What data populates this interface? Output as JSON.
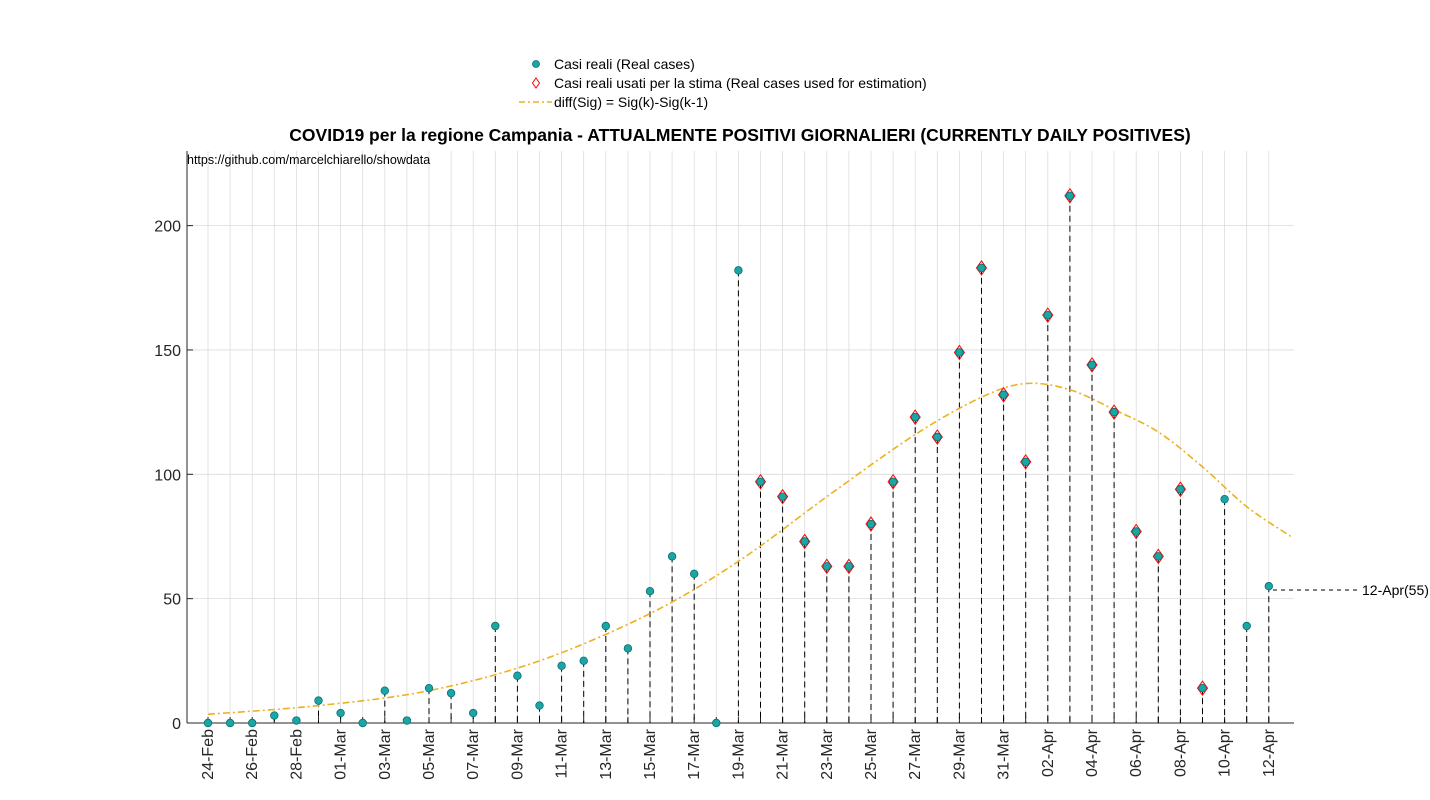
{
  "chart_data": {
    "type": "scatter",
    "title": "COVID19 per la regione Campania - ATTUALMENTE POSITIVI GIORNALIERI (CURRENTLY DAILY POSITIVES)",
    "xlabel": "",
    "ylabel": "",
    "ylim": [
      0,
      230
    ],
    "yticks": [
      0,
      50,
      100,
      150,
      200
    ],
    "grid": true,
    "legend_position": "top-center",
    "dates": [
      "24-Feb",
      "25-Feb",
      "26-Feb",
      "27-Feb",
      "28-Feb",
      "29-Feb",
      "01-Mar",
      "02-Mar",
      "03-Mar",
      "04-Mar",
      "05-Mar",
      "06-Mar",
      "07-Mar",
      "08-Mar",
      "09-Mar",
      "10-Mar",
      "11-Mar",
      "12-Mar",
      "13-Mar",
      "14-Mar",
      "15-Mar",
      "16-Mar",
      "17-Mar",
      "18-Mar",
      "19-Mar",
      "20-Mar",
      "21-Mar",
      "22-Mar",
      "23-Mar",
      "24-Mar",
      "25-Mar",
      "26-Mar",
      "27-Mar",
      "28-Mar",
      "29-Mar",
      "30-Mar",
      "31-Mar",
      "01-Apr",
      "02-Apr",
      "03-Apr",
      "04-Apr",
      "05-Apr",
      "06-Apr",
      "07-Apr",
      "08-Apr",
      "09-Apr",
      "10-Apr",
      "11-Apr",
      "12-Apr"
    ],
    "xtick_labels": [
      "24-Feb",
      "26-Feb",
      "28-Feb",
      "01-Mar",
      "03-Mar",
      "05-Mar",
      "07-Mar",
      "09-Mar",
      "11-Mar",
      "13-Mar",
      "15-Mar",
      "17-Mar",
      "19-Mar",
      "21-Mar",
      "23-Mar",
      "25-Mar",
      "27-Mar",
      "29-Mar",
      "31-Mar",
      "02-Apr",
      "04-Apr",
      "06-Apr",
      "08-Apr",
      "10-Apr",
      "12-Apr"
    ],
    "series": [
      {
        "name": "Casi reali (Real cases)",
        "color": "#1aa6a6",
        "marker": "circle",
        "values": [
          0,
          0,
          0,
          3,
          1,
          9,
          4,
          0,
          13,
          1,
          14,
          12,
          4,
          39,
          19,
          7,
          23,
          25,
          39,
          30,
          53,
          67,
          60,
          0,
          182,
          97,
          91,
          73,
          63,
          63,
          80,
          97,
          123,
          115,
          149,
          183,
          132,
          105,
          164,
          212,
          144,
          125,
          77,
          67,
          94,
          14,
          90,
          39,
          55
        ]
      },
      {
        "name": "Casi reali usati per la stima (Real cases used for estimation)",
        "color": "#ff0000",
        "marker": "diamond",
        "start_date": "20-Mar",
        "end_date": "09-Apr",
        "values": [
          97,
          91,
          73,
          63,
          63,
          80,
          97,
          123,
          115,
          149,
          183,
          132,
          105,
          164,
          212,
          144,
          125,
          77,
          67,
          94,
          14
        ]
      },
      {
        "name": "diff(Sig) = Sig(k)-Sig(k-1)",
        "color": "#edb120",
        "line_style": "dash-dot",
        "x_dates": [
          "24-Feb",
          "29-Feb",
          "05-Mar",
          "10-Mar",
          "15-Mar",
          "19-Mar",
          "23-Mar",
          "27-Mar",
          "30-Mar",
          "01-Apr",
          "03-Apr",
          "05-Apr",
          "07-Apr",
          "09-Apr",
          "11-Apr",
          "13-Apr"
        ],
        "values": [
          3.5,
          7,
          13,
          25,
          44,
          65,
          91,
          116,
          131,
          136.5,
          134,
          126,
          117,
          103,
          87,
          75
        ]
      }
    ],
    "annotations": {
      "last_point_label": "12-Apr(55)",
      "source_note": "https://github.com/marcelchiarello/showdata"
    }
  }
}
